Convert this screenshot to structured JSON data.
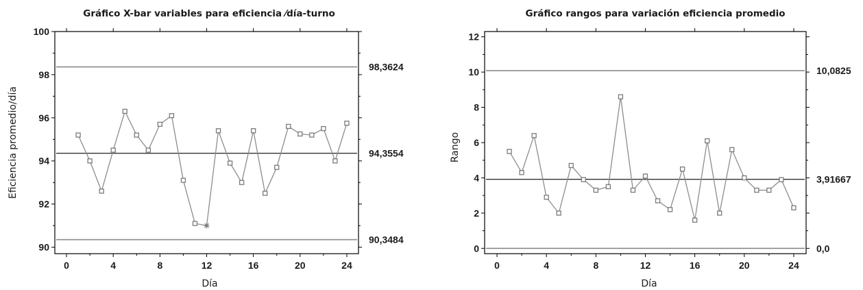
{
  "colors": {
    "series": "#8c8c8c",
    "marker": "#7a7a7a",
    "center": "#303030",
    "limit": "#8a8a8a",
    "frame": "#000000"
  },
  "chart_data": [
    {
      "type": "line",
      "title": "Gráfico X-bar variables para eficiencia ⁄día-turno",
      "xlabel": "Día",
      "ylabel": "Eficiencia promedio/día",
      "xlim": [
        -1,
        25
      ],
      "ylim": [
        89.7,
        100
      ],
      "xticks": [
        0,
        4,
        8,
        12,
        16,
        20,
        24
      ],
      "xtick_labels": [
        "0",
        "4",
        "8",
        "12",
        "16",
        "20",
        "24"
      ],
      "yticks": [
        90,
        92,
        94,
        96,
        98,
        100
      ],
      "ytick_labels": [
        "90",
        "92",
        "94",
        "96",
        "98",
        "100"
      ],
      "control_limits": {
        "ucl": 98.3624,
        "center": 94.3554,
        "lcl": 90.3484
      },
      "limit_labels": [
        "98,3624",
        "94,3554",
        "90,3484"
      ],
      "x": [
        1,
        2,
        3,
        4,
        5,
        6,
        7,
        8,
        9,
        10,
        11,
        12,
        13,
        14,
        15,
        16,
        17,
        18,
        19,
        20,
        21,
        22,
        23,
        24
      ],
      "values": [
        95.2,
        94.0,
        92.6,
        94.5,
        96.3,
        95.2,
        94.5,
        95.7,
        96.1,
        93.1,
        91.1,
        91.0,
        95.4,
        93.9,
        93.0,
        95.4,
        92.5,
        93.7,
        95.6,
        95.25,
        95.2,
        95.5,
        94.0,
        95.75
      ],
      "out_of_control_index": [
        11
      ],
      "grid": false
    },
    {
      "type": "line",
      "title": "Gráfico rangos para variación eficiencia promedio",
      "xlabel": "Día",
      "ylabel": "Rango",
      "xlim": [
        -1,
        25
      ],
      "ylim": [
        -0.3,
        12.3
      ],
      "xticks": [
        0,
        4,
        8,
        12,
        16,
        20,
        24
      ],
      "xtick_labels": [
        "0",
        "4",
        "8",
        "12",
        "16",
        "20",
        "24"
      ],
      "yticks": [
        0,
        2,
        4,
        6,
        8,
        10,
        12
      ],
      "ytick_labels": [
        "0",
        "2",
        "4",
        "6",
        "8",
        "10",
        "12"
      ],
      "control_limits": {
        "ucl": 10.0825,
        "center": 3.91667,
        "lcl": 0.0
      },
      "limit_labels": [
        "10,0825",
        "3,91667",
        "0,0"
      ],
      "x": [
        1,
        2,
        3,
        4,
        5,
        6,
        7,
        8,
        9,
        10,
        11,
        12,
        13,
        14,
        15,
        16,
        17,
        18,
        19,
        20,
        21,
        22,
        23,
        24
      ],
      "values": [
        5.5,
        4.3,
        6.4,
        2.9,
        2.0,
        4.7,
        3.9,
        3.3,
        3.5,
        8.6,
        3.3,
        4.1,
        2.7,
        2.2,
        4.5,
        1.6,
        6.1,
        2.0,
        5.6,
        4.0,
        3.3,
        3.3,
        3.9,
        2.3
      ],
      "out_of_control_index": [],
      "grid": false
    }
  ]
}
